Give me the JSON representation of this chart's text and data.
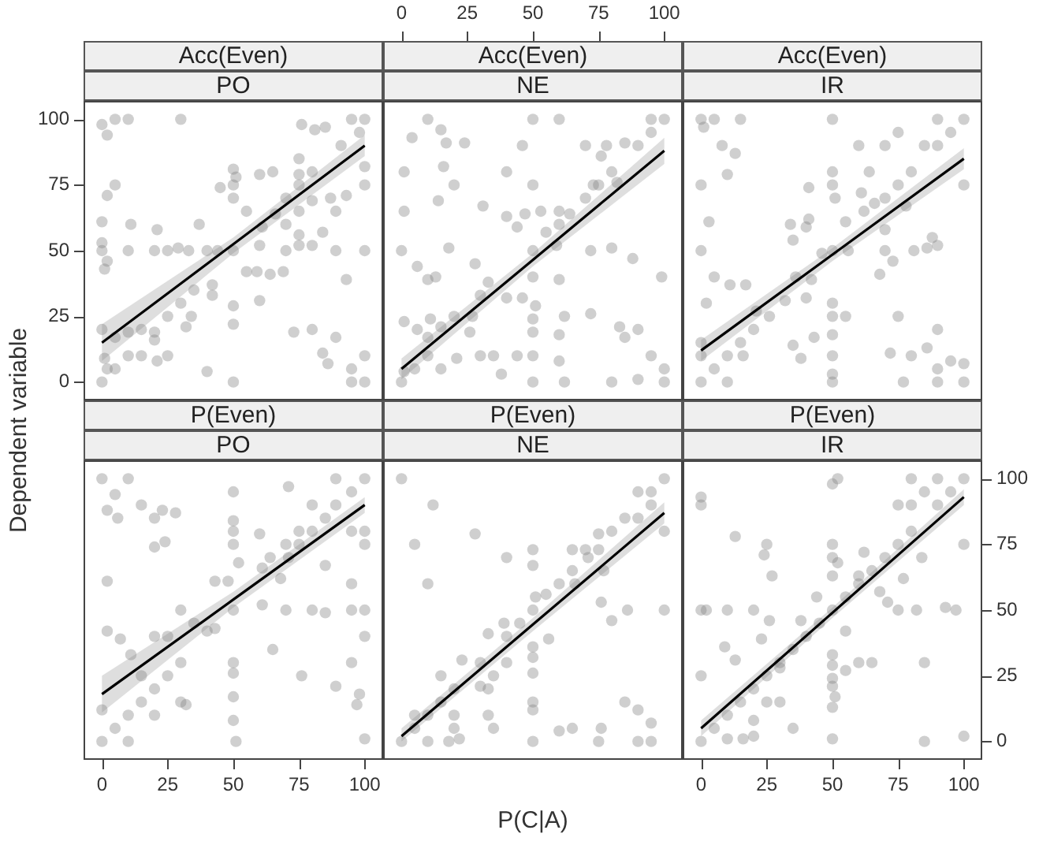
{
  "chart_data": [
    {
      "type": "scatter",
      "title": "Acc(Even)",
      "subtitle": "PO",
      "ylabel": "Dependent variable",
      "xlim": [
        -7,
        107
      ],
      "ylim": [
        -7,
        107
      ],
      "yticks": [
        0,
        25,
        50,
        75,
        100
      ],
      "tick_labels": "y",
      "series": [
        {
          "marker": "circle",
          "color": "#808080",
          "x": [
            0,
            2,
            5,
            10,
            30,
            2,
            5,
            0,
            11,
            21,
            0,
            0,
            2,
            1,
            10,
            20,
            25,
            29,
            33,
            37,
            40,
            44,
            50,
            45,
            50,
            50,
            50,
            51,
            60,
            65,
            55,
            61,
            66,
            70,
            70,
            70,
            60,
            55,
            59,
            64,
            69,
            60,
            50,
            50,
            73,
            80,
            75,
            76,
            81,
            85,
            91,
            95,
            100,
            98,
            100,
            100,
            93,
            87,
            89,
            75,
            80,
            75,
            80,
            75,
            75,
            75,
            80,
            84,
            89,
            100,
            93,
            89,
            84,
            86,
            95,
            95,
            100,
            100,
            50,
            40,
            25,
            10,
            15,
            21,
            20,
            20,
            25,
            15,
            10,
            32,
            34,
            30,
            35,
            42,
            42,
            0,
            2,
            5,
            0,
            5,
            1
          ],
          "values": [
            98,
            94,
            100,
            100,
            100,
            71,
            75,
            61,
            60,
            58,
            53,
            50,
            46,
            43,
            50,
            50,
            50,
            51,
            50,
            60,
            50,
            50,
            50,
            74,
            81,
            75,
            70,
            78,
            79,
            80,
            65,
            59,
            64,
            70,
            60,
            50,
            52,
            42,
            42,
            41,
            42,
            31,
            29,
            22,
            19,
            20,
            85,
            98,
            96,
            97,
            90,
            100,
            100,
            95,
            82,
            75,
            71,
            70,
            65,
            79,
            80,
            75,
            69,
            65,
            56,
            52,
            52,
            57,
            50,
            50,
            39,
            17,
            11,
            7,
            5,
            0,
            0,
            10,
            0,
            4,
            10,
            10,
            10,
            8,
            19,
            16,
            25,
            20,
            19,
            21,
            25,
            30,
            35,
            37,
            33,
            0,
            5,
            5,
            20,
            17,
            9
          ]
        },
        {
          "type": "line",
          "marker": "none",
          "color": "#000000",
          "x": [
            0,
            50,
            100
          ],
          "values": [
            15,
            52.5,
            90
          ],
          "lower": [
            8,
            49,
            86
          ],
          "upper": [
            22,
            55,
            94
          ]
        }
      ]
    },
    {
      "type": "scatter",
      "title": "Acc(Even)",
      "subtitle": "NE",
      "xlim": [
        -7,
        107
      ],
      "ylim": [
        -7,
        107
      ],
      "x2lim": [
        -7,
        107
      ],
      "x2ticks": [
        0,
        25,
        50,
        75,
        100
      ],
      "tick_labels": "x",
      "series": [
        {
          "marker": "circle",
          "color": "#808080",
          "x": [
            10,
            15,
            4,
            17,
            24,
            50,
            60,
            46,
            1,
            16,
            20,
            40,
            50,
            14,
            1,
            31,
            40,
            47,
            53,
            60,
            44,
            60,
            50,
            55,
            59,
            64,
            70,
            75,
            80,
            85,
            90,
            95,
            100,
            95,
            70,
            78,
            76,
            73,
            82,
            0,
            18,
            6,
            28,
            10,
            13,
            33,
            50,
            60,
            40,
            46,
            51,
            50,
            50,
            30,
            27,
            20,
            11,
            6,
            1,
            15,
            26,
            10,
            10,
            5,
            0,
            1,
            15,
            21,
            30,
            35,
            38,
            50,
            60,
            62,
            50,
            44,
            60,
            72,
            83,
            90,
            85,
            95,
            100,
            80,
            90,
            100,
            88,
            99,
            72,
            80,
            62
          ],
          "values": [
            100,
            96,
            93,
            91,
            91,
            100,
            100,
            90,
            80,
            82,
            75,
            80,
            75,
            69,
            65,
            67,
            63,
            64,
            65,
            65,
            59,
            60,
            50,
            57,
            52,
            64,
            70,
            75,
            80,
            91,
            90,
            100,
            100,
            95,
            90,
            90,
            86,
            75,
            76,
            50,
            51,
            44,
            45,
            39,
            40,
            38,
            40,
            39,
            32,
            32,
            29,
            24,
            19,
            33,
            25,
            25,
            24,
            20,
            23,
            21,
            19,
            17,
            10,
            5,
            0,
            4,
            5,
            9,
            10,
            10,
            3,
            0,
            8,
            0,
            10,
            10,
            18,
            26,
            21,
            20,
            17,
            10,
            5,
            0,
            1,
            0,
            47,
            40,
            50,
            51,
            25
          ]
        },
        {
          "type": "line",
          "marker": "none",
          "color": "#000000",
          "x": [
            0,
            50,
            100
          ],
          "values": [
            5,
            46.5,
            88
          ],
          "lower": [
            1,
            44,
            83
          ],
          "upper": [
            9,
            49,
            93
          ]
        }
      ]
    },
    {
      "type": "scatter",
      "title": "Acc(Even)",
      "subtitle": "IR",
      "xlim": [
        -7,
        107
      ],
      "ylim": [
        -7,
        107
      ],
      "tick_labels": false,
      "series": [
        {
          "marker": "circle",
          "color": "#808080",
          "x": [
            0,
            5,
            15,
            1,
            50,
            90,
            100,
            95,
            90,
            85,
            80,
            75,
            70,
            75,
            70,
            60,
            8,
            13,
            10,
            0,
            50,
            50,
            64,
            41,
            51,
            61,
            100,
            62,
            66,
            55,
            40,
            34,
            41,
            35,
            50,
            46,
            56,
            70,
            78,
            88,
            90,
            81,
            86,
            70,
            73,
            68,
            3,
            0,
            5,
            11,
            17,
            2,
            21,
            32,
            40,
            36,
            42,
            26,
            50,
            50,
            55,
            75,
            50,
            50,
            50,
            50,
            20,
            15,
            10,
            5,
            0,
            10,
            16,
            35,
            43,
            38,
            72,
            80,
            86,
            90,
            95,
            100,
            90,
            90,
            100,
            77,
            0,
            0
          ],
          "values": [
            100,
            100,
            100,
            97,
            100,
            100,
            100,
            95,
            90,
            90,
            80,
            75,
            70,
            95,
            90,
            90,
            90,
            87,
            79,
            75,
            80,
            75,
            80,
            74,
            70,
            72,
            75,
            65,
            68,
            61,
            59,
            60,
            62,
            54,
            50,
            49,
            50,
            58,
            67,
            55,
            52,
            50,
            51,
            50,
            46,
            41,
            61,
            50,
            40,
            37,
            37,
            30,
            27,
            31,
            32,
            40,
            39,
            25,
            30,
            25,
            25,
            25,
            18,
            10,
            3,
            0,
            20,
            15,
            10,
            5,
            0,
            0,
            10,
            14,
            17,
            9,
            11,
            10,
            13,
            20,
            8,
            7,
            5,
            0,
            0,
            0,
            15,
            10
          ]
        },
        {
          "type": "line",
          "marker": "none",
          "color": "#000000",
          "x": [
            0,
            50,
            100
          ],
          "values": [
            12,
            48.5,
            85
          ],
          "lower": [
            8,
            46,
            81
          ],
          "upper": [
            16,
            51,
            89
          ]
        }
      ]
    },
    {
      "type": "scatter",
      "title": "P(Even)",
      "subtitle": "PO",
      "xlim": [
        -7,
        107
      ],
      "ylim": [
        -7,
        107
      ],
      "xticks": [
        0,
        25,
        50,
        75,
        100
      ],
      "tick_labels": "x",
      "series": [
        {
          "marker": "circle",
          "color": "#808080",
          "x": [
            0,
            10,
            5,
            2,
            6,
            15,
            20,
            23,
            28,
            20,
            24,
            2,
            2,
            7,
            0,
            0,
            5,
            10,
            10,
            15,
            20,
            20,
            25,
            30,
            25,
            20,
            11,
            15,
            30,
            35,
            40,
            43,
            43,
            48,
            50,
            50,
            50,
            50,
            50,
            51,
            50,
            50,
            50,
            52,
            50,
            60,
            61,
            64,
            68,
            71,
            70,
            75,
            70,
            61,
            65,
            76,
            80,
            85,
            95,
            100,
            100,
            95,
            89,
            98,
            97,
            100,
            95,
            85,
            75,
            80,
            80,
            85,
            89,
            95,
            100,
            89,
            71,
            100,
            100,
            95,
            30,
            32
          ],
          "values": [
            100,
            100,
            94,
            88,
            85,
            90,
            85,
            88,
            87,
            74,
            76,
            61,
            42,
            39,
            12,
            0,
            5,
            10,
            0,
            15,
            20,
            10,
            25,
            30,
            40,
            40,
            33,
            25,
            50,
            45,
            42,
            43,
            61,
            61,
            50,
            30,
            26,
            17,
            8,
            0,
            95,
            84,
            75,
            68,
            80,
            79,
            66,
            70,
            62,
            70,
            75,
            75,
            50,
            52,
            35,
            25,
            50,
            49,
            50,
            50,
            40,
            30,
            21,
            18,
            14,
            1,
            60,
            67,
            80,
            80,
            90,
            85,
            90,
            95,
            100,
            100,
            97,
            80,
            75,
            80,
            15,
            14
          ]
        },
        {
          "type": "line",
          "marker": "none",
          "color": "#000000",
          "x": [
            0,
            50,
            100
          ],
          "values": [
            18,
            54,
            90
          ],
          "lower": [
            11,
            51,
            87
          ],
          "upper": [
            25,
            57,
            93
          ]
        }
      ]
    },
    {
      "type": "scatter",
      "title": "P(Even)",
      "subtitle": "NE",
      "xlabel": "P(C|A)",
      "xlim": [
        -7,
        107
      ],
      "ylim": [
        -7,
        107
      ],
      "tick_labels": false,
      "series": [
        {
          "marker": "circle",
          "color": "#808080",
          "x": [
            0,
            12,
            5,
            10,
            28,
            40,
            50,
            50,
            50,
            60,
            55,
            51,
            65,
            66,
            65,
            70,
            75,
            80,
            75,
            71,
            77,
            76,
            80,
            86,
            90,
            95,
            100,
            95,
            85,
            90,
            100,
            100,
            33,
            39,
            45,
            40,
            56,
            50,
            50,
            50,
            50,
            50,
            50,
            23,
            30,
            40,
            35,
            33,
            30,
            20,
            15,
            15,
            10,
            5,
            5,
            0,
            10,
            20,
            20,
            18,
            22,
            33,
            35,
            60,
            65,
            76,
            75,
            85,
            90,
            95,
            95,
            90
          ],
          "values": [
            100,
            90,
            75,
            60,
            79,
            70,
            73,
            67,
            50,
            60,
            56,
            55,
            65,
            60,
            73,
            73,
            73,
            80,
            79,
            70,
            65,
            53,
            46,
            50,
            95,
            95,
            100,
            90,
            85,
            85,
            80,
            50,
            41,
            45,
            45,
            40,
            39,
            36,
            32,
            26,
            15,
            12,
            0,
            31,
            30,
            30,
            25,
            20,
            21,
            20,
            25,
            15,
            10,
            10,
            5,
            0,
            0,
            10,
            5,
            0,
            1,
            10,
            5,
            4,
            5,
            5,
            0,
            15,
            12,
            7,
            0,
            0
          ]
        },
        {
          "type": "line",
          "marker": "none",
          "color": "#000000",
          "x": [
            0,
            50,
            100
          ],
          "values": [
            2,
            44.5,
            87
          ],
          "lower": [
            0,
            42,
            83
          ],
          "upper": [
            5,
            47,
            91
          ]
        }
      ]
    },
    {
      "type": "scatter",
      "title": "P(Even)",
      "subtitle": "IR",
      "xlim": [
        -7,
        107
      ],
      "xticks": [
        0,
        25,
        50,
        75,
        100
      ],
      "y2lim": [
        -7,
        107
      ],
      "y2ticks": [
        0,
        25,
        50,
        75,
        100
      ],
      "series": [
        {
          "axis": "y2",
          "marker": "circle",
          "color": "#808080",
          "x": [
            0,
            0,
            50,
            52,
            80,
            90,
            100,
            95,
            90,
            85,
            75,
            80,
            80,
            75,
            70,
            65,
            60,
            55,
            50,
            45,
            40,
            35,
            30,
            25,
            20,
            15,
            10,
            5,
            0,
            13,
            25,
            24,
            27,
            50,
            50,
            50,
            52,
            62,
            60,
            0,
            2,
            10,
            20,
            26,
            44,
            38,
            23,
            9,
            0,
            13,
            30,
            25,
            30,
            20,
            16,
            20,
            35,
            10,
            50,
            50,
            50,
            50,
            50,
            51,
            50,
            55,
            55,
            60,
            65,
            68,
            71,
            75,
            77,
            82,
            84,
            85,
            85,
            93,
            97,
            100,
            100
          ],
          "values": [
            93,
            90,
            98,
            100,
            100,
            100,
            100,
            95,
            90,
            95,
            90,
            90,
            80,
            75,
            70,
            65,
            60,
            55,
            50,
            45,
            40,
            35,
            30,
            25,
            20,
            15,
            10,
            5,
            0,
            78,
            75,
            71,
            63,
            75,
            70,
            63,
            68,
            72,
            63,
            50,
            50,
            50,
            50,
            46,
            55,
            46,
            39,
            36,
            25,
            31,
            28,
            15,
            15,
            8,
            1,
            2,
            5,
            1,
            33,
            29,
            24,
            21,
            13,
            17,
            1,
            27,
            42,
            30,
            30,
            57,
            53,
            50,
            62,
            50,
            70,
            30,
            0,
            51,
            50,
            75,
            2
          ]
        },
        {
          "type": "line",
          "axis": "y2",
          "marker": "none",
          "color": "#000000",
          "x": [
            0,
            50,
            100
          ],
          "values": [
            5,
            49,
            93
          ],
          "lower": [
            2,
            47,
            90
          ],
          "upper": [
            8,
            51,
            96
          ]
        }
      ]
    }
  ]
}
